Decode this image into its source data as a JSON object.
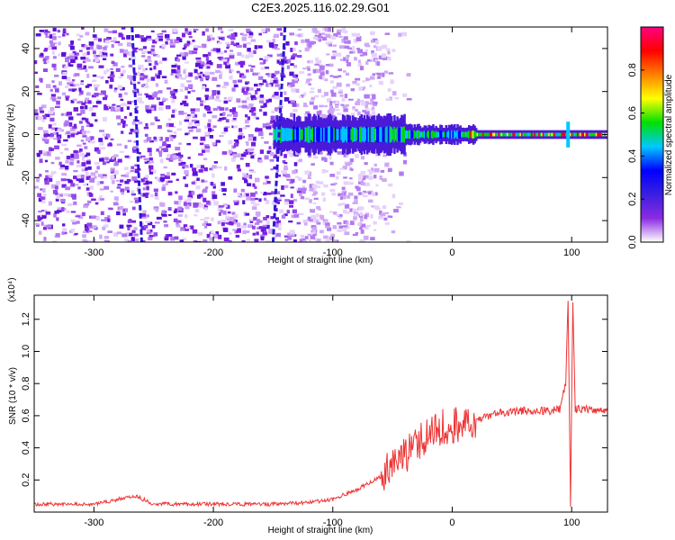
{
  "figure": {
    "title": "C2E3.2025.116.02.29.G01"
  },
  "chart_data": [
    {
      "type": "heatmap",
      "xlabel": "Height of straight line (km)",
      "ylabel": "Frequency (Hz)",
      "xlim": [
        -350,
        130
      ],
      "ylim": [
        -50,
        50
      ],
      "xticks": [
        -300,
        -200,
        -100,
        0,
        100
      ],
      "yticks": [
        -40,
        -20,
        0,
        20,
        40
      ],
      "colorbar": {
        "label": "Normalized spectral amplitude",
        "range": [
          0,
          1
        ],
        "ticks": [
          "0.0",
          "0.2",
          "0.4",
          "0.6",
          "0.8"
        ],
        "tick_values": [
          0.0,
          0.2,
          0.4,
          0.6,
          0.8
        ],
        "colormap": [
          "#ffffff",
          "#8a2be2",
          "#3a1fe0",
          "#0000ff",
          "#00c8ff",
          "#00e000",
          "#ffff00",
          "#ff8000",
          "#ff0000",
          "#ff0080"
        ]
      },
      "signal_band": {
        "x_start": -150,
        "x_end": 130,
        "center_hz": 0
      },
      "noise_region": {
        "x_start": -350,
        "x_end": -75
      },
      "streaks": [
        {
          "x_top": -268,
          "x_bottom": -260
        },
        {
          "x_top": -140,
          "x_bottom": -150
        }
      ],
      "spike_x": 97
    },
    {
      "type": "line",
      "xlabel": "Height of straight line (km)",
      "ylabel": "SNR (10 * v/v)",
      "y_multiplier": "(x10⁴)",
      "xlim": [
        -350,
        130
      ],
      "ylim": [
        0,
        1.35
      ],
      "xticks": [
        -300,
        -200,
        -100,
        0,
        100
      ],
      "yticks": [
        0.2,
        0.4,
        0.6,
        0.8,
        1.0,
        1.2
      ],
      "color": "#ee3333",
      "x": [
        -350,
        -300,
        -265,
        -250,
        -200,
        -150,
        -120,
        -100,
        -80,
        -60,
        -40,
        -20,
        0,
        20,
        40,
        60,
        80,
        90,
        95,
        97,
        99,
        101,
        103,
        110,
        130
      ],
      "y": [
        0.05,
        0.05,
        0.1,
        0.05,
        0.05,
        0.05,
        0.06,
        0.08,
        0.14,
        0.22,
        0.34,
        0.5,
        0.54,
        0.58,
        0.62,
        0.63,
        0.63,
        0.64,
        0.8,
        1.3,
        0.05,
        1.3,
        0.64,
        0.64,
        0.63
      ]
    }
  ]
}
